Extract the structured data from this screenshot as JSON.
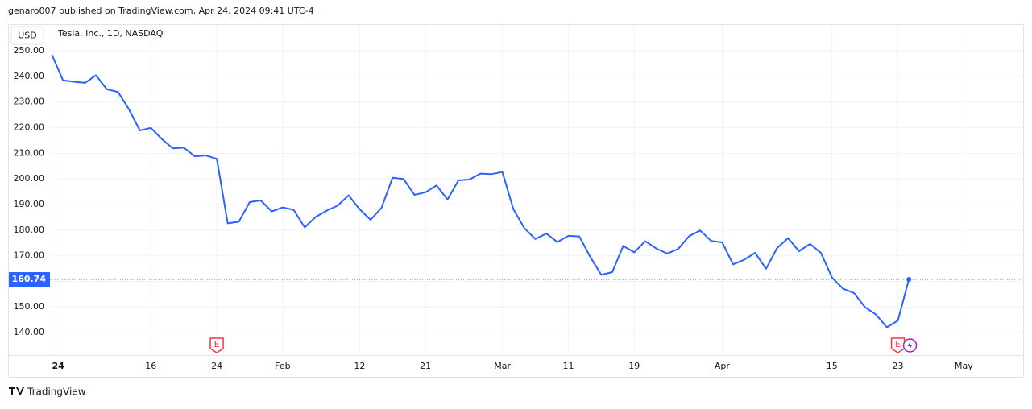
{
  "header": {
    "published": "genaro007 published on TradingView.com, Apr 24, 2024 09:41 UTC-4"
  },
  "footer": {
    "brand": "TradingView"
  },
  "chart_data": {
    "type": "line",
    "currency": "USD",
    "title": "Tesla, Inc., 1D, NASDAQ",
    "color": "#2962ff",
    "grid": true,
    "values": [
      248.42,
      238.45,
      237.93,
      237.49,
      240.45,
      234.96,
      233.94,
      227.22,
      218.89,
      219.91,
      215.55,
      211.88,
      212.19,
      208.8,
      209.14,
      207.83,
      182.63,
      183.25,
      190.93,
      191.59,
      187.29,
      188.86,
      187.91,
      181.06,
      185.1,
      187.58,
      189.56,
      193.57,
      188.13,
      184.02,
      188.71,
      200.45,
      199.95,
      193.76,
      194.77,
      197.41,
      191.97,
      199.4,
      199.73,
      202.04,
      201.88,
      202.64,
      188.14,
      180.74,
      176.54,
      178.65,
      175.34,
      177.77,
      177.54,
      169.48,
      162.5,
      163.57,
      173.8,
      171.32,
      175.66,
      172.82,
      170.83,
      172.63,
      177.67,
      179.83,
      175.79,
      175.22,
      166.63,
      168.38,
      171.11,
      164.9,
      172.98,
      176.88,
      171.76,
      174.6,
      171.05,
      161.48,
      157.11,
      155.45,
      149.93,
      147.05,
      142.05,
      144.68,
      160.74
    ],
    "xlim": [
      -4,
      88.4
    ],
    "xticks": [
      {
        "value": 0,
        "label": "24"
      },
      {
        "value": 9,
        "label": "16"
      },
      {
        "value": 15,
        "label": "24"
      },
      {
        "value": 21,
        "label": "Feb"
      },
      {
        "value": 28,
        "label": "12"
      },
      {
        "value": 34,
        "label": "21"
      },
      {
        "value": 41,
        "label": "Mar"
      },
      {
        "value": 47,
        "label": "11"
      },
      {
        "value": 53,
        "label": "19"
      },
      {
        "value": 61,
        "label": "Apr"
      },
      {
        "value": 71,
        "label": "15"
      },
      {
        "value": 77,
        "label": "23"
      },
      {
        "value": 83,
        "label": "May"
      }
    ],
    "ylim": [
      131.2,
      260.4
    ],
    "yticks": [
      {
        "value": 140,
        "label": "140.00"
      },
      {
        "value": 150,
        "label": "150.00"
      },
      {
        "value": 160,
        "label": "160.00"
      },
      {
        "value": 170,
        "label": "170.00"
      },
      {
        "value": 180,
        "label": "180.00"
      },
      {
        "value": 190,
        "label": "190.00"
      },
      {
        "value": 200,
        "label": "200.00"
      },
      {
        "value": 210,
        "label": "210.00"
      },
      {
        "value": 220,
        "label": "220.00"
      },
      {
        "value": 230,
        "label": "230.00"
      },
      {
        "value": 240,
        "label": "240.00"
      },
      {
        "value": 250,
        "label": "250.00"
      }
    ],
    "events": [
      {
        "x": 15,
        "label": "E"
      },
      {
        "x": 77,
        "label": "E"
      }
    ]
  }
}
